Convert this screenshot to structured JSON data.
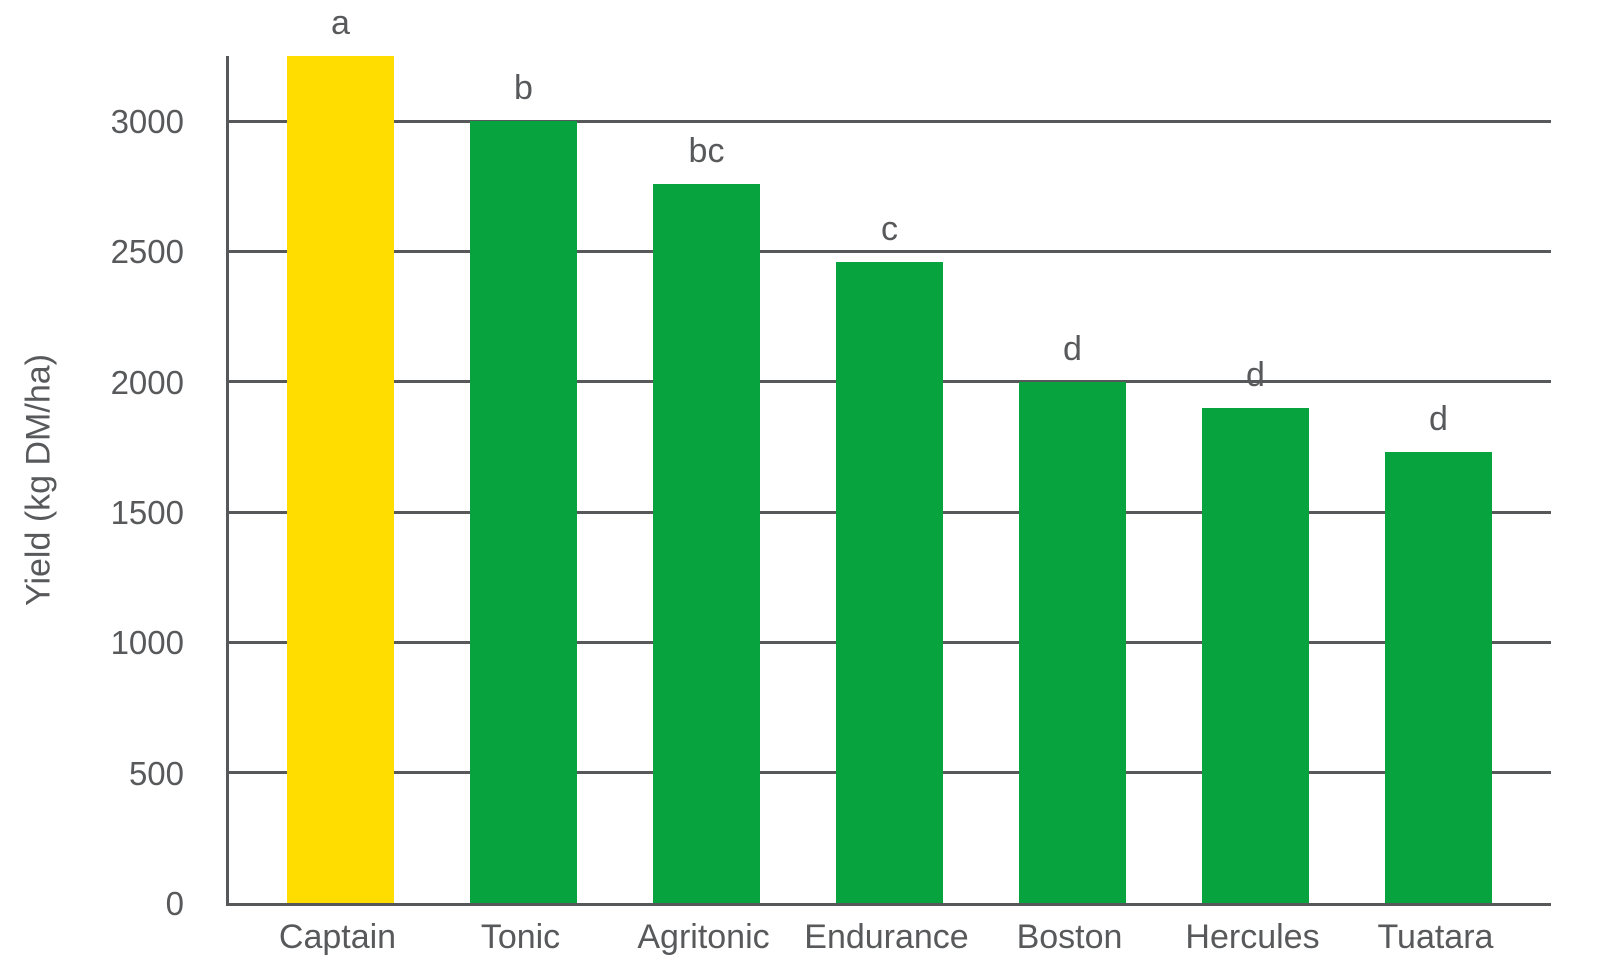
{
  "chart_data": {
    "type": "bar",
    "categories": [
      "Captain",
      "Tonic",
      "Agritonic",
      "Endurance",
      "Boston",
      "Hercules",
      "Tuatara"
    ],
    "values": [
      3250,
      3000,
      2760,
      2460,
      2000,
      1900,
      1730
    ],
    "significance_labels": [
      "a",
      "b",
      "bc",
      "c",
      "d",
      "d",
      "d"
    ],
    "bar_colors": [
      "#FFDD00",
      "#07A33F",
      "#07A33F",
      "#07A33F",
      "#07A33F",
      "#07A33F",
      "#07A33F"
    ],
    "title": "",
    "xlabel": "",
    "ylabel": "Yield (kg DM/ha)",
    "ylim": [
      0,
      3250
    ],
    "yticks": [
      0,
      500,
      1000,
      1500,
      2000,
      2500,
      3000
    ],
    "grid": true,
    "legend": false,
    "axis_color": "#57585A",
    "text_color": "#58595B",
    "background_color": "#FFFFFF"
  }
}
